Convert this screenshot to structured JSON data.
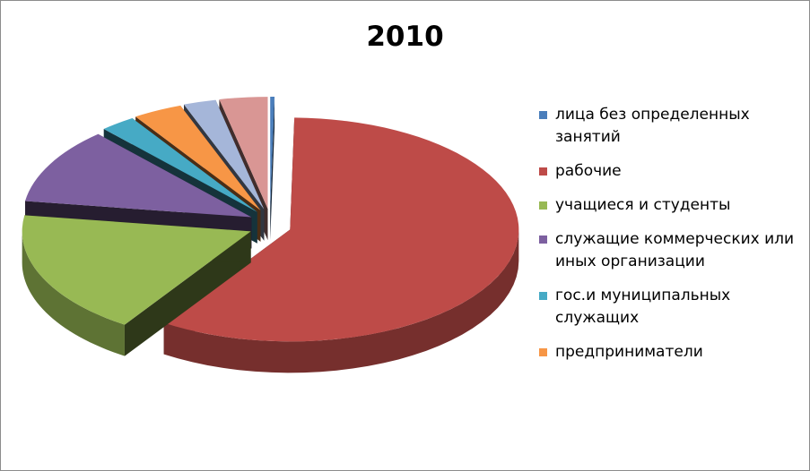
{
  "chart_data": {
    "type": "pie3d",
    "title": "2010",
    "categories": [
      "лица без определенных занятий",
      "рабочие",
      "учащиеся и студенты",
      "служащие коммерческих или иных организации",
      "гос.и муниципальных служащих",
      "предприниматели",
      null,
      null
    ],
    "values": [
      0.3,
      59,
      18,
      11,
      2.5,
      3.5,
      2.3,
      3.4
    ],
    "colors": [
      "#4a7ebb",
      "#be4b48",
      "#98b954",
      "#7d60a0",
      "#46aac5",
      "#f79646",
      "#a5b6d9",
      "#d99694"
    ],
    "legend": "right"
  }
}
